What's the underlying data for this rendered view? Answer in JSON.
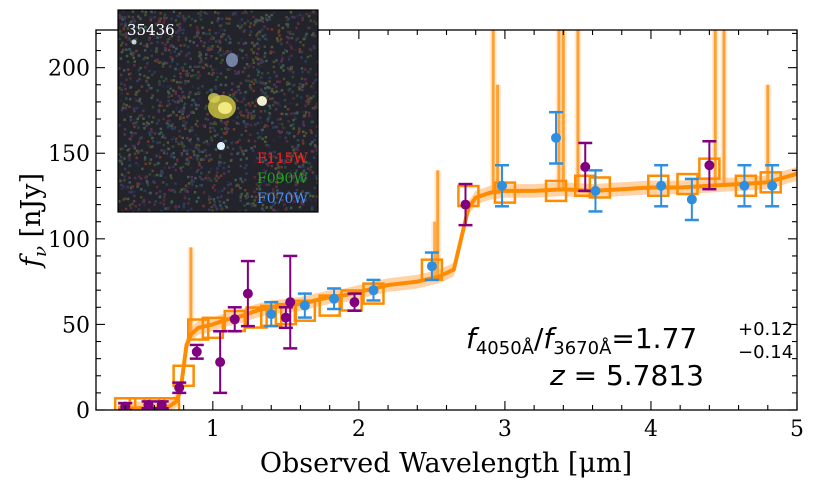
{
  "chart_data": {
    "type": "scatter",
    "xlabel": "Observed Wavelength [μm]",
    "ylabel_main": "f",
    "ylabel_sub": "ν",
    "ylabel_unit": " [nJy]",
    "xlim": [
      0.2,
      5.0
    ],
    "ylim": [
      0,
      222
    ],
    "xticks": [
      1,
      2,
      3,
      4,
      5
    ],
    "yticks": [
      0,
      50,
      100,
      150,
      200
    ],
    "xtick_labels": [
      "1",
      "2",
      "3",
      "4",
      "5"
    ],
    "ytick_labels": [
      "0",
      "50",
      "100",
      "150",
      "200"
    ],
    "grid": false,
    "colors": {
      "model": "#ff8c00",
      "model_band": "#ffc890",
      "blue_points": "#2e8fe0",
      "purple_points": "#800080"
    },
    "annotation": {
      "ratio_main_1": "f",
      "ratio_sub_1": "4050Å",
      "ratio_slash": "/",
      "ratio_main_2": "f",
      "ratio_sub_2": "3670Å",
      "ratio_eq": "=1.77",
      "ratio_upper": "+0.12",
      "ratio_lower": "−0.14",
      "redshift_var": "z",
      "redshift_val": " = 5.7813"
    },
    "inset": {
      "object_id": "35436",
      "filters": [
        {
          "label": "F115W",
          "color": "#ff2020"
        },
        {
          "label": "F090W",
          "color": "#20a020"
        },
        {
          "label": "F070W",
          "color": "#4a90ff"
        }
      ]
    },
    "model_spectrum": {
      "x": [
        0.35,
        0.5,
        0.6,
        0.7,
        0.75,
        0.78,
        0.8,
        0.82,
        0.85,
        0.9,
        1.0,
        1.1,
        1.2,
        1.3,
        1.4,
        1.5,
        1.6,
        1.7,
        1.8,
        1.9,
        2.0,
        2.1,
        2.2,
        2.3,
        2.4,
        2.45,
        2.5,
        2.55,
        2.6,
        2.65,
        2.7,
        2.75,
        2.8,
        2.9,
        3.0,
        3.2,
        3.4,
        3.6,
        3.8,
        4.0,
        4.2,
        4.4,
        4.6,
        4.8,
        5.0
      ],
      "y": [
        1,
        1,
        1,
        2,
        5,
        12,
        25,
        38,
        44,
        48,
        50,
        53,
        55,
        58,
        60,
        61,
        62,
        64,
        66,
        67,
        69,
        71,
        73,
        74,
        75,
        76,
        77,
        78,
        80,
        82,
        100,
        118,
        124,
        127,
        128,
        128,
        129,
        128,
        129,
        130,
        130,
        131,
        132,
        133,
        138
      ]
    },
    "model_band_halfwidth": 4,
    "emission_lines": [
      {
        "x": 0.85,
        "y": 95
      },
      {
        "x": 2.52,
        "y": 110
      },
      {
        "x": 2.54,
        "y": 140
      },
      {
        "x": 2.92,
        "y": 222
      },
      {
        "x": 2.95,
        "y": 190
      },
      {
        "x": 3.37,
        "y": 222
      },
      {
        "x": 3.4,
        "y": 222
      },
      {
        "x": 3.5,
        "y": 222
      },
      {
        "x": 4.44,
        "y": 222
      },
      {
        "x": 4.5,
        "y": 222
      },
      {
        "x": 4.8,
        "y": 190
      }
    ],
    "photometry_model_boxes": {
      "x": [
        0.4,
        0.5,
        0.6,
        0.7,
        0.8,
        0.9,
        1.0,
        1.15,
        1.3,
        1.4,
        1.5,
        1.63,
        1.8,
        1.95,
        2.1,
        2.5,
        2.75,
        3.0,
        3.35,
        3.55,
        3.65,
        4.05,
        4.25,
        4.4,
        4.65,
        4.82
      ],
      "y": [
        1,
        1,
        1,
        1,
        20,
        47,
        48,
        52,
        54,
        55,
        56,
        58,
        61,
        64,
        68,
        82,
        125,
        127,
        128,
        131,
        130,
        131,
        132,
        141,
        131,
        133
      ]
    },
    "series": [
      {
        "name": "",
        "color": "#2e8fe0",
        "x": [
          1.4,
          1.63,
          1.83,
          2.1,
          2.5,
          2.98,
          3.35,
          3.62,
          4.07,
          4.28,
          4.64,
          4.83
        ],
        "y": [
          56,
          61,
          65,
          70,
          84,
          131,
          159,
          128,
          131,
          123,
          131,
          131
        ],
        "yerr": [
          7,
          7,
          6,
          6,
          8,
          12,
          15,
          12,
          12,
          12,
          12,
          12
        ]
      },
      {
        "name": "",
        "color": "#800080",
        "x": [
          0.4,
          0.56,
          0.65,
          0.77,
          0.89,
          1.05,
          1.15,
          1.24,
          1.5,
          1.53,
          1.97,
          2.73,
          3.55,
          4.4
        ],
        "y": [
          2,
          3,
          3,
          13,
          34,
          28,
          53,
          68,
          54,
          63,
          63,
          120,
          142,
          143
        ],
        "yerr": [
          2,
          2,
          2,
          3,
          4,
          18,
          7,
          19,
          6,
          27,
          5,
          12,
          14,
          14
        ]
      }
    ]
  }
}
